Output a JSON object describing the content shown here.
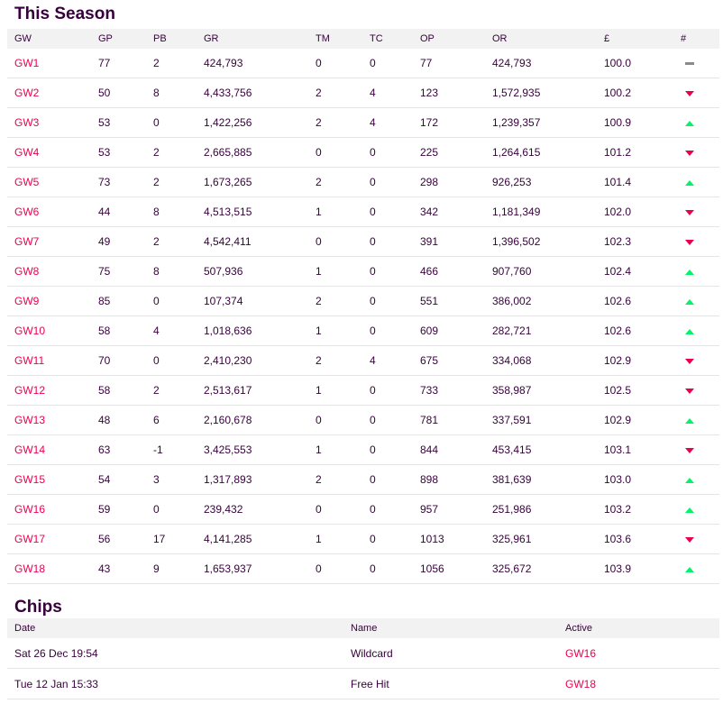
{
  "season": {
    "title": "This Season",
    "headers": [
      "GW",
      "GP",
      "PB",
      "GR",
      "TM",
      "TC",
      "OP",
      "OR",
      "£",
      "#"
    ],
    "rows": [
      {
        "gw": "GW1",
        "gp": "77",
        "pb": "2",
        "gr": "424,793",
        "tm": "0",
        "tc": "0",
        "op": "77",
        "or": "424,793",
        "value": "100.0",
        "move": "same"
      },
      {
        "gw": "GW2",
        "gp": "50",
        "pb": "8",
        "gr": "4,433,756",
        "tm": "2",
        "tc": "4",
        "op": "123",
        "or": "1,572,935",
        "value": "100.2",
        "move": "down"
      },
      {
        "gw": "GW3",
        "gp": "53",
        "pb": "0",
        "gr": "1,422,256",
        "tm": "2",
        "tc": "4",
        "op": "172",
        "or": "1,239,357",
        "value": "100.9",
        "move": "up"
      },
      {
        "gw": "GW4",
        "gp": "53",
        "pb": "2",
        "gr": "2,665,885",
        "tm": "0",
        "tc": "0",
        "op": "225",
        "or": "1,264,615",
        "value": "101.2",
        "move": "down"
      },
      {
        "gw": "GW5",
        "gp": "73",
        "pb": "2",
        "gr": "1,673,265",
        "tm": "2",
        "tc": "0",
        "op": "298",
        "or": "926,253",
        "value": "101.4",
        "move": "up"
      },
      {
        "gw": "GW6",
        "gp": "44",
        "pb": "8",
        "gr": "4,513,515",
        "tm": "1",
        "tc": "0",
        "op": "342",
        "or": "1,181,349",
        "value": "102.0",
        "move": "down"
      },
      {
        "gw": "GW7",
        "gp": "49",
        "pb": "2",
        "gr": "4,542,411",
        "tm": "0",
        "tc": "0",
        "op": "391",
        "or": "1,396,502",
        "value": "102.3",
        "move": "down"
      },
      {
        "gw": "GW8",
        "gp": "75",
        "pb": "8",
        "gr": "507,936",
        "tm": "1",
        "tc": "0",
        "op": "466",
        "or": "907,760",
        "value": "102.4",
        "move": "up"
      },
      {
        "gw": "GW9",
        "gp": "85",
        "pb": "0",
        "gr": "107,374",
        "tm": "2",
        "tc": "0",
        "op": "551",
        "or": "386,002",
        "value": "102.6",
        "move": "up"
      },
      {
        "gw": "GW10",
        "gp": "58",
        "pb": "4",
        "gr": "1,018,636",
        "tm": "1",
        "tc": "0",
        "op": "609",
        "or": "282,721",
        "value": "102.6",
        "move": "up"
      },
      {
        "gw": "GW11",
        "gp": "70",
        "pb": "0",
        "gr": "2,410,230",
        "tm": "2",
        "tc": "4",
        "op": "675",
        "or": "334,068",
        "value": "102.9",
        "move": "down"
      },
      {
        "gw": "GW12",
        "gp": "58",
        "pb": "2",
        "gr": "2,513,617",
        "tm": "1",
        "tc": "0",
        "op": "733",
        "or": "358,987",
        "value": "102.5",
        "move": "down"
      },
      {
        "gw": "GW13",
        "gp": "48",
        "pb": "6",
        "gr": "2,160,678",
        "tm": "0",
        "tc": "0",
        "op": "781",
        "or": "337,591",
        "value": "102.9",
        "move": "up"
      },
      {
        "gw": "GW14",
        "gp": "63",
        "pb": "-1",
        "gr": "3,425,553",
        "tm": "1",
        "tc": "0",
        "op": "844",
        "or": "453,415",
        "value": "103.1",
        "move": "down"
      },
      {
        "gw": "GW15",
        "gp": "54",
        "pb": "3",
        "gr": "1,317,893",
        "tm": "2",
        "tc": "0",
        "op": "898",
        "or": "381,639",
        "value": "103.0",
        "move": "up"
      },
      {
        "gw": "GW16",
        "gp": "59",
        "pb": "0",
        "gr": "239,432",
        "tm": "0",
        "tc": "0",
        "op": "957",
        "or": "251,986",
        "value": "103.2",
        "move": "up"
      },
      {
        "gw": "GW17",
        "gp": "56",
        "pb": "17",
        "gr": "4,141,285",
        "tm": "1",
        "tc": "0",
        "op": "1013",
        "or": "325,961",
        "value": "103.6",
        "move": "down"
      },
      {
        "gw": "GW18",
        "gp": "43",
        "pb": "9",
        "gr": "1,653,937",
        "tm": "0",
        "tc": "0",
        "op": "1056",
        "or": "325,672",
        "value": "103.9",
        "move": "up"
      }
    ]
  },
  "chips": {
    "title": "Chips",
    "headers": [
      "Date",
      "Name",
      "Active"
    ],
    "rows": [
      {
        "date": "Sat 26 Dec 19:54",
        "name": "Wildcard",
        "active": "GW16"
      },
      {
        "date": "Tue 12 Jan 15:33",
        "name": "Free Hit",
        "active": "GW18"
      }
    ]
  },
  "colors": {
    "text": "#37003c",
    "link": "#e90052",
    "up": "#05f26c",
    "down": "#e90052",
    "same": "#8a8a8a",
    "header_bg": "#f2f2f2"
  },
  "icons": {
    "up": "rank-up-arrow-icon",
    "down": "rank-down-arrow-icon",
    "same": "rank-unchanged-icon"
  }
}
